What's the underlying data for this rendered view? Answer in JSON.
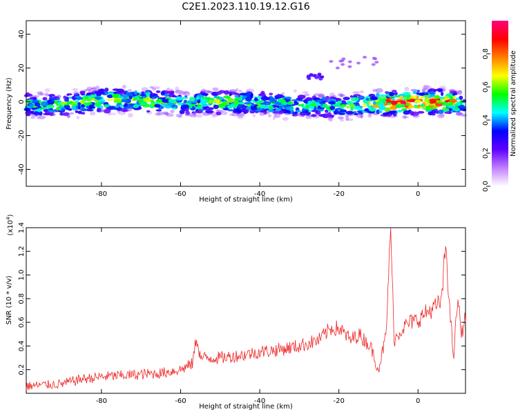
{
  "title": "C2E1.2023.110.19.12.G16",
  "colors": {
    "snr_line": "#ee2222",
    "axis": "#000000"
  },
  "chart_data": [
    {
      "type": "heatmap",
      "xlabel": "Height of straight line (km)",
      "ylabel": "Frequency (Hz)",
      "xlim": [
        -99,
        12
      ],
      "ylim": [
        -50,
        48
      ],
      "xticks": [
        -80,
        -60,
        -40,
        -20,
        0
      ],
      "yticks": [
        -40,
        -20,
        0,
        20,
        40
      ],
      "colorbar": {
        "label": "Normalized spectral amplitude",
        "range": [
          0,
          1
        ],
        "ticks": [
          "0.0",
          "0.2",
          "0.4",
          "0.6",
          "0.8"
        ],
        "tick_values": [
          0,
          0.2,
          0.4,
          0.6,
          0.8
        ],
        "colormap": [
          "#ffffff",
          "#c080ff",
          "#6000ff",
          "#0000ff",
          "#00ffff",
          "#00ff00",
          "#ffff00",
          "#ff8000",
          "#ff0000",
          "#ff0080"
        ]
      },
      "trace": {
        "x": [
          -99,
          -90,
          -80,
          -70,
          -60,
          -50,
          -40,
          -30,
          -20,
          -12,
          -8,
          0,
          8,
          12
        ],
        "center": [
          -2,
          -2,
          1,
          1,
          -1,
          0,
          -1,
          -2,
          -3,
          -1,
          -1,
          0,
          0,
          -2
        ],
        "peak": [
          0.6,
          0.65,
          0.7,
          0.7,
          0.6,
          0.7,
          0.65,
          0.6,
          0.6,
          0.75,
          0.95,
          1.0,
          0.95,
          0.5
        ]
      },
      "features": [
        {
          "x": [
            -28,
            -24
          ],
          "y": [
            13,
            17
          ],
          "amplitude": 0.25
        },
        {
          "x": [
            -22,
            -8
          ],
          "y": [
            18,
            27
          ],
          "amplitude": 0.15
        }
      ]
    },
    {
      "type": "line",
      "xlabel": "Height of straight line (km)",
      "ylabel": "SNR (10 * v/v)",
      "scale_label": "(x10",
      "scale_exp": "4",
      "scale_close": ")",
      "xlim": [
        -99,
        12
      ],
      "ylim": [
        0,
        1.4
      ],
      "xticks": [
        -80,
        -60,
        -40,
        -20,
        0
      ],
      "yticks": [
        0.2,
        0.4,
        0.6,
        0.8,
        1.0,
        1.2,
        1.4
      ],
      "ytick_labels": [
        "0.2",
        "0.4",
        "0.6",
        "0.8",
        "1.0",
        "1.2",
        "1.4"
      ],
      "series": [
        {
          "x": [
            -99,
            -95,
            -90,
            -85,
            -80,
            -75,
            -70,
            -65,
            -60,
            -57,
            -56,
            -55,
            -50,
            -45,
            -40,
            -35,
            -30,
            -25,
            -22,
            -20,
            -17,
            -15,
            -12,
            -10,
            -8,
            -7,
            -6,
            -4,
            -2,
            0,
            2,
            4,
            6,
            7,
            8,
            9,
            10,
            11,
            12
          ],
          "y": [
            0.06,
            0.07,
            0.08,
            0.12,
            0.14,
            0.15,
            0.16,
            0.17,
            0.2,
            0.25,
            0.48,
            0.3,
            0.3,
            0.32,
            0.35,
            0.37,
            0.4,
            0.45,
            0.55,
            0.55,
            0.45,
            0.5,
            0.4,
            0.2,
            0.5,
            1.42,
            0.45,
            0.55,
            0.6,
            0.62,
            0.68,
            0.72,
            0.78,
            1.28,
            0.7,
            0.3,
            0.8,
            0.5,
            0.65
          ],
          "noise": 0.12
        }
      ]
    }
  ]
}
